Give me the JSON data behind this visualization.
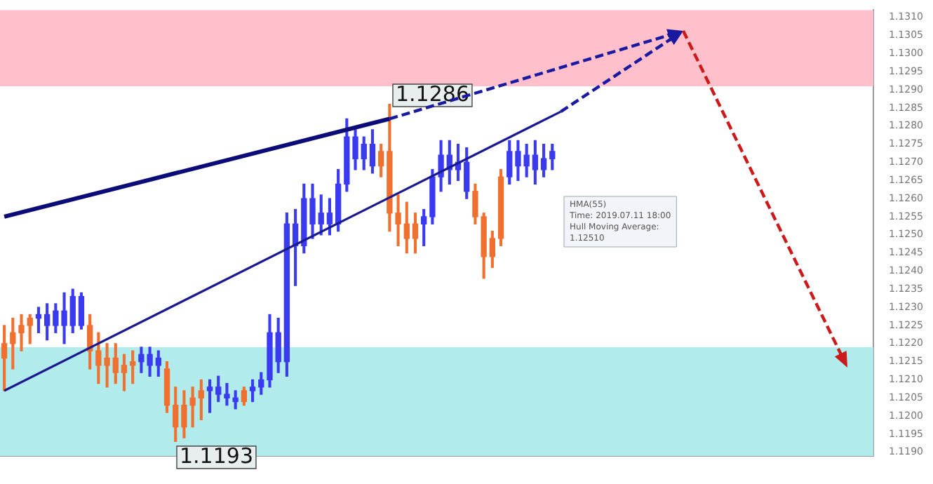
{
  "chart_data": {
    "type": "candlestick",
    "tick_labels": "y",
    "legend": false,
    "grid": false,
    "categories": [
      null,
      null,
      null,
      null,
      null,
      null,
      null,
      null,
      null,
      null,
      null,
      null,
      null,
      null,
      null,
      null,
      null,
      null,
      null,
      null,
      null,
      null,
      null,
      null,
      null,
      null,
      null,
      null,
      null,
      null,
      null,
      null,
      null,
      null,
      null,
      null,
      null,
      null,
      null,
      null,
      null,
      null,
      null,
      null,
      null,
      null,
      null,
      null,
      null,
      null,
      null,
      null,
      null,
      null,
      null,
      null,
      null,
      null,
      null,
      null,
      null,
      null,
      null,
      null,
      null,
      null,
      null,
      null,
      null,
      null,
      null,
      null,
      null,
      null,
      null,
      null,
      null,
      null,
      null,
      null,
      null,
      null,
      null,
      null,
      null,
      null,
      null,
      null,
      null,
      null,
      null,
      null,
      null,
      null,
      null,
      null,
      null,
      null,
      null,
      null,
      null,
      null
    ],
    "ylim": [
      1.1189,
      1.1312
    ],
    "yticks": [
      {
        "value": 1.119,
        "label": "1.1190"
      },
      1.1195,
      {
        "value": 1.12,
        "label": "1.1200"
      },
      1.1205,
      {
        "value": 1.121,
        "label": "1.1210"
      },
      1.1215,
      {
        "value": 1.122,
        "label": "1.1220"
      },
      1.1225,
      {
        "value": 1.123,
        "label": "1.1230"
      },
      1.1235,
      {
        "value": 1.124,
        "label": "1.1240"
      },
      1.1245,
      {
        "value": 1.125,
        "label": "1.1250"
      },
      1.1255,
      {
        "value": 1.126,
        "label": "1.1260"
      },
      1.1265,
      {
        "value": 1.127,
        "label": "1.1270"
      },
      1.1275,
      {
        "value": 1.128,
        "label": "1.1280"
      },
      1.1285,
      {
        "value": 1.129,
        "label": "1.1290"
      },
      1.1295,
      {
        "value": 1.13,
        "label": "1.1300"
      },
      1.1305,
      {
        "value": 1.131,
        "label": "1.1310"
      }
    ],
    "ohlc": [
      [
        1.122,
        1.1225,
        1.1207,
        1.1216
      ],
      [
        1.1223,
        1.1227,
        1.1213,
        1.122
      ],
      [
        1.1225,
        1.1228,
        1.1218,
        1.1223
      ],
      [
        1.1227,
        1.1228,
        1.122,
        1.1225
      ],
      [
        1.1227,
        1.123,
        1.1223,
        1.1228
      ],
      [
        1.1225,
        1.1231,
        1.1221,
        1.1228
      ],
      [
        1.1225,
        1.1231,
        1.1223,
        1.1229
      ],
      [
        1.1225,
        1.1234,
        1.122,
        1.1229
      ],
      [
        1.1225,
        1.1235,
        1.1223,
        1.1233
      ],
      [
        1.1225,
        1.1234,
        1.1224,
        1.1233
      ],
      [
        1.1225,
        1.1228,
        1.1213,
        1.1218
      ],
      [
        1.1218,
        1.1223,
        1.1209,
        1.1214
      ],
      [
        1.1216,
        1.122,
        1.1208,
        1.1214
      ],
      [
        1.1216,
        1.122,
        1.1209,
        1.1212
      ],
      [
        1.1214,
        1.1217,
        1.1207,
        1.1212
      ],
      [
        1.1215,
        1.1218,
        1.1209,
        1.1214
      ],
      [
        1.1215,
        1.1219,
        1.1212,
        1.1217
      ],
      [
        1.1214,
        1.1219,
        1.1211,
        1.1217
      ],
      [
        1.1214,
        1.1218,
        1.1211,
        1.1216
      ],
      [
        1.1213,
        1.1215,
        1.1201,
        1.1203
      ],
      [
        1.1203,
        1.1208,
        1.1193,
        1.1197
      ],
      [
        1.1203,
        1.1207,
        1.1194,
        1.1197
      ],
      [
        1.1205,
        1.1208,
        1.1197,
        1.1203
      ],
      [
        1.1207,
        1.121,
        1.1199,
        1.1205
      ],
      [
        1.1207,
        1.121,
        1.1201,
        1.1208
      ],
      [
        1.1206,
        1.1211,
        1.1204,
        1.1208
      ],
      [
        1.1205,
        1.1209,
        1.1203,
        1.1206
      ],
      [
        1.1204,
        1.1207,
        1.1202,
        1.1205
      ],
      [
        1.1207,
        1.1208,
        1.1203,
        1.1204
      ],
      [
        1.1207,
        1.121,
        1.1204,
        1.1208
      ],
      [
        1.1208,
        1.1212,
        1.1206,
        1.121
      ],
      [
        1.121,
        1.1228,
        1.1208,
        1.1223
      ],
      [
        1.1215,
        1.1227,
        1.1212,
        1.1223
      ],
      [
        1.1215,
        1.1256,
        1.1211,
        1.1253
      ],
      [
        1.1247,
        1.1257,
        1.1236,
        1.1253
      ],
      [
        1.1247,
        1.1264,
        1.1245,
        1.126
      ],
      [
        1.1253,
        1.1264,
        1.1249,
        1.126
      ],
      [
        1.1253,
        1.1261,
        1.125,
        1.1256
      ],
      [
        1.1253,
        1.126,
        1.125,
        1.1256
      ],
      [
        1.1253,
        1.1268,
        1.1251,
        1.1264
      ],
      [
        1.1264,
        1.1282,
        1.1262,
        1.1277
      ],
      [
        1.1271,
        1.1279,
        1.1268,
        1.1277
      ],
      [
        1.1271,
        1.1277,
        1.1268,
        1.1275
      ],
      [
        1.1269,
        1.1279,
        1.1267,
        1.1275
      ],
      [
        1.1273,
        1.1275,
        1.1266,
        1.1269
      ],
      [
        1.1273,
        1.1286,
        1.1251,
        1.1256
      ],
      [
        1.1256,
        1.1261,
        1.1247,
        1.1253
      ],
      [
        1.1253,
        1.1259,
        1.1245,
        1.1249
      ],
      [
        1.1253,
        1.1256,
        1.1245,
        1.1249
      ],
      [
        1.1253,
        1.1257,
        1.1247,
        1.1255
      ],
      [
        1.1255,
        1.1268,
        1.1253,
        1.1266
      ],
      [
        1.1266,
        1.1276,
        1.1262,
        1.1272
      ],
      [
        1.1268,
        1.1276,
        1.1264,
        1.1272
      ],
      [
        1.1268,
        1.1275,
        1.1265,
        1.127
      ],
      [
        1.1262,
        1.1274,
        1.126,
        1.127
      ],
      [
        1.1262,
        1.1264,
        1.1253,
        1.1255
      ],
      [
        1.1255,
        1.1256,
        1.1238,
        1.1244
      ],
      [
        1.1249,
        1.1251,
        1.1241,
        1.1244
      ],
      [
        1.1266,
        1.1268,
        1.1247,
        1.1249
      ],
      [
        1.1266,
        1.1276,
        1.1264,
        1.1273
      ],
      [
        1.1269,
        1.1276,
        1.1265,
        1.1273
      ],
      [
        1.1269,
        1.1275,
        1.1266,
        1.1272
      ],
      [
        1.1268,
        1.1276,
        1.1264,
        1.1272
      ],
      [
        1.1268,
        1.1275,
        1.1266,
        1.1271
      ],
      [
        1.1271,
        1.1275,
        1.1268,
        1.1273
      ],
      null,
      null,
      null,
      null,
      null,
      null,
      null,
      null,
      null,
      null,
      null,
      null,
      null,
      null,
      null,
      null,
      null,
      null,
      null,
      null,
      null,
      null,
      null,
      null,
      null,
      null,
      null,
      null,
      null,
      null,
      null,
      null,
      null,
      null,
      null,
      null,
      null
    ],
    "colors": [
      "#f07030",
      "#f07030",
      "#f07030",
      "#f07030",
      "#3a3af0",
      "#3a3af0",
      "#3a3af0",
      "#3a3af0",
      "#3a3af0",
      "#3a3af0",
      "#f07030",
      "#f07030",
      "#f07030",
      "#f07030",
      "#f07030",
      "#f07030",
      "#3a3af0",
      "#3a3af0",
      "#3a3af0",
      "#f07030",
      "#f07030",
      "#f07030",
      "#f07030",
      "#f07030",
      "#3a3af0",
      "#3a3af0",
      "#3a3af0",
      "#3a3af0",
      "#f07030",
      "#3a3af0",
      "#3a3af0",
      "#3a3af0",
      "#3a3af0",
      "#3a3af0",
      "#3a3af0",
      "#3a3af0",
      "#3a3af0",
      "#3a3af0",
      "#3a3af0",
      "#3a3af0",
      "#3a3af0",
      "#3a3af0",
      "#3a3af0",
      "#3a3af0",
      "#f07030",
      "#f07030",
      "#f07030",
      "#f07030",
      "#f07030",
      "#3a3af0",
      "#3a3af0",
      "#3a3af0",
      "#3a3af0",
      "#3a3af0",
      "#3a3af0",
      "#f07030",
      "#f07030",
      "#f07030",
      "#f07030",
      "#3a3af0",
      "#3a3af0",
      "#3a3af0",
      "#3a3af0",
      "#3a3af0",
      "#3a3af0",
      null,
      null,
      null,
      null,
      null,
      null,
      null,
      null,
      null,
      null,
      null,
      null,
      null,
      null,
      null,
      null,
      null,
      null,
      null,
      null,
      null,
      null,
      null,
      null,
      null,
      null,
      null,
      null,
      null,
      null,
      null,
      null,
      null,
      null,
      null,
      null,
      null
    ],
    "series": [
      {
        "type": "line",
        "color": "#0c0c78",
        "line_style": "solid",
        "values": [
          1.1255,
          null,
          null,
          null,
          null,
          null,
          null,
          null,
          null,
          null,
          null,
          null,
          null,
          null,
          null,
          null,
          null,
          null,
          null,
          null,
          null,
          null,
          null,
          null,
          null,
          null,
          null,
          null,
          null,
          null,
          null,
          null,
          null,
          null,
          null,
          null,
          null,
          null,
          null,
          null,
          null,
          null,
          null,
          null,
          null,
          1.1282,
          null,
          null,
          null,
          null,
          null,
          null,
          null,
          null,
          null,
          null,
          null,
          null,
          null,
          null,
          null,
          null,
          null,
          null,
          null,
          null,
          null,
          null,
          null,
          null,
          null,
          null,
          null,
          null,
          null,
          null,
          null,
          null,
          null,
          null,
          null,
          null,
          null,
          null,
          null,
          null,
          null,
          null,
          null,
          null,
          null,
          null,
          null,
          null,
          null,
          null,
          null,
          null,
          null,
          null,
          null,
          null
        ]
      },
      {
        "type": "line",
        "color": "#1a1a90",
        "line_style": "solid",
        "values": [
          1.1207,
          null,
          null,
          null,
          null,
          null,
          null,
          null,
          null,
          null,
          null,
          null,
          null,
          null,
          null,
          null,
          null,
          null,
          null,
          null,
          null,
          null,
          null,
          null,
          null,
          null,
          null,
          null,
          null,
          null,
          null,
          null,
          null,
          null,
          null,
          null,
          null,
          null,
          null,
          null,
          null,
          null,
          null,
          null,
          null,
          null,
          null,
          null,
          null,
          null,
          null,
          null,
          null,
          null,
          null,
          null,
          null,
          null,
          null,
          null,
          null,
          null,
          null,
          null,
          null,
          1.1284,
          null,
          null,
          null,
          null,
          null,
          null,
          null,
          null,
          null,
          null,
          null,
          null,
          null,
          null,
          null,
          null,
          null,
          null,
          null,
          null,
          null,
          null,
          null,
          null,
          null,
          null,
          null,
          null,
          null,
          null,
          null,
          null,
          null,
          null,
          null,
          null
        ]
      }
    ],
    "bands": [
      {
        "axis": "y",
        "from": 1.1291,
        "to": 1.1312,
        "color": "#ffc0cb"
      },
      {
        "axis": "y",
        "from": 1.1189,
        "to": 1.1219,
        "color": "#b2ebeb"
      }
    ],
    "annotations": [
      "1.1286",
      "1.1193",
      "HMA(55)\nTime: 2019.07.11 18:00\nHull Moving Average:\n1.12510"
    ]
  }
}
